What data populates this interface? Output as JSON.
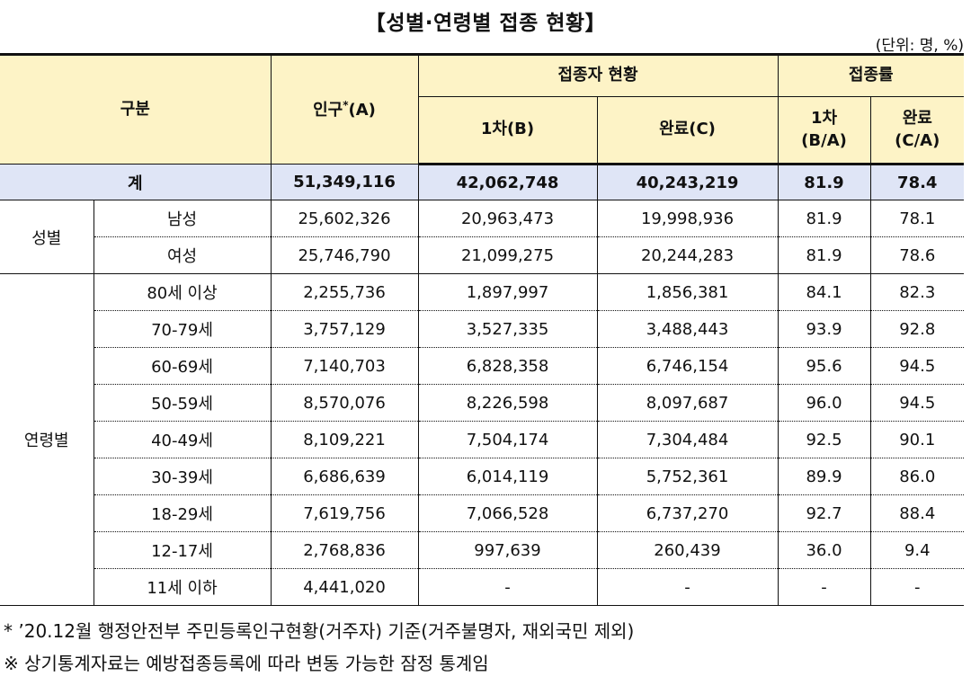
{
  "title": "【성별·연령별 접종 현황】",
  "unit": "(단위: 명, %)",
  "headers": {
    "category": "구분",
    "population": "인구",
    "population_mark": "*",
    "population_suffix": "(A)",
    "vaccinated_group": "접종자 현황",
    "first_dose": "1차(B)",
    "completed": "완료(C)",
    "rate_group": "접종률",
    "rate_first_line1": "1차",
    "rate_first_line2": "(B/A)",
    "rate_completed_line1": "완료",
    "rate_completed_line2": "(C/A)"
  },
  "total": {
    "label": "계",
    "population": "51,349,116",
    "first": "42,062,748",
    "completed": "40,243,219",
    "rate_first": "81.9",
    "rate_completed": "78.4"
  },
  "sex": {
    "group_label": "성별",
    "rows": [
      {
        "label": "남성",
        "population": "25,602,326",
        "first": "20,963,473",
        "completed": "19,998,936",
        "rate_first": "81.9",
        "rate_completed": "78.1"
      },
      {
        "label": "여성",
        "population": "25,746,790",
        "first": "21,099,275",
        "completed": "20,244,283",
        "rate_first": "81.9",
        "rate_completed": "78.6"
      }
    ]
  },
  "age": {
    "group_label": "연령별",
    "rows": [
      {
        "label": "80세 이상",
        "population": "2,255,736",
        "first": "1,897,997",
        "completed": "1,856,381",
        "rate_first": "84.1",
        "rate_completed": "82.3"
      },
      {
        "label": "70-79세",
        "population": "3,757,129",
        "first": "3,527,335",
        "completed": "3,488,443",
        "rate_first": "93.9",
        "rate_completed": "92.8"
      },
      {
        "label": "60-69세",
        "population": "7,140,703",
        "first": "6,828,358",
        "completed": "6,746,154",
        "rate_first": "95.6",
        "rate_completed": "94.5"
      },
      {
        "label": "50-59세",
        "population": "8,570,076",
        "first": "8,226,598",
        "completed": "8,097,687",
        "rate_first": "96.0",
        "rate_completed": "94.5"
      },
      {
        "label": "40-49세",
        "population": "8,109,221",
        "first": "7,504,174",
        "completed": "7,304,484",
        "rate_first": "92.5",
        "rate_completed": "90.1"
      },
      {
        "label": "30-39세",
        "population": "6,686,639",
        "first": "6,014,119",
        "completed": "5,752,361",
        "rate_first": "89.9",
        "rate_completed": "86.0"
      },
      {
        "label": "18-29세",
        "population": "7,619,756",
        "first": "7,066,528",
        "completed": "6,737,270",
        "rate_first": "92.7",
        "rate_completed": "88.4"
      },
      {
        "label": "12-17세",
        "population": "2,768,836",
        "first": "997,639",
        "completed": "260,439",
        "rate_first": "36.0",
        "rate_completed": "9.4"
      },
      {
        "label": "11세 이하",
        "population": "4,441,020",
        "first": "-",
        "completed": "-",
        "rate_first": "-",
        "rate_completed": "-"
      }
    ]
  },
  "notes": [
    "* ’20.12월 행정안전부 주민등록인구현황(거주자) 기준(거주불명자, 재외국민 제외)",
    "※ 상기통계자료는 예방접종등록에 따라 변동 가능한 잠정 통계임"
  ]
}
